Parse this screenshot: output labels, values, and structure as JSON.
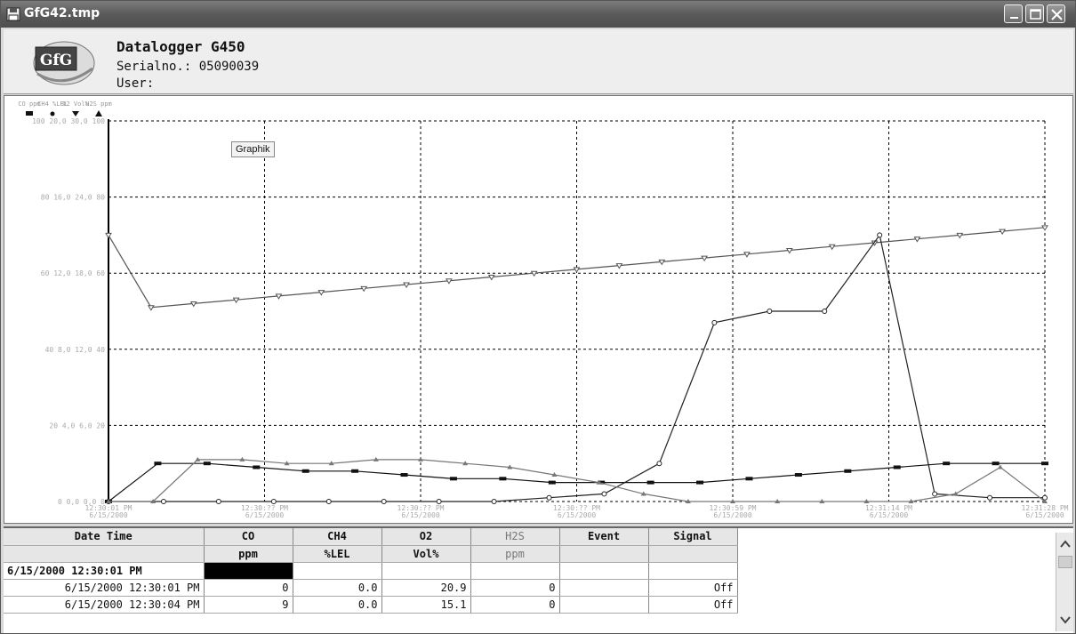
{
  "window": {
    "title": "GfG42.tmp"
  },
  "header": {
    "device": "Datalogger G450",
    "serial": "Serialno.: 05090039",
    "user": "User:",
    "logo_text": "GfG"
  },
  "chart": {
    "annotation": "Graphik",
    "legend": [
      {
        "label": "CO ppm",
        "marker": "square"
      },
      {
        "label": "CH4 %LEL",
        "marker": "circle"
      },
      {
        "label": "O2 Vol%",
        "marker": "triangle-down"
      },
      {
        "label": "H2S ppm",
        "marker": "triangle-up"
      }
    ],
    "y_ticks": [
      "100 20,0 30,0 100",
      "80 16,0 24,0 80",
      "60 12,0 18,0 60",
      "40 8,0 12,0 40",
      "20 4,0 6,0 20",
      "0 0,0 0,0 0"
    ],
    "x_ticks": [
      [
        "12:30:01 PM",
        "6/15/2000"
      ],
      [
        "12:30:?? PM",
        "6/15/2000"
      ],
      [
        "12:30:?? PM",
        "6/15/2000"
      ],
      [
        "12:30:?? PM",
        "6/15/2000"
      ],
      [
        "12:30:59 PM",
        "6/15/2000"
      ],
      [
        "12:31:14 PM",
        "6/15/2000"
      ],
      [
        "12:31:28 PM",
        "6/15/2000"
      ]
    ]
  },
  "chart_data": {
    "type": "line",
    "ylim": [
      0,
      100
    ],
    "grid": true,
    "legend_position": "top-left",
    "series": [
      {
        "name": "O2 Vol%",
        "values": [
          70,
          51,
          52,
          53,
          54,
          55,
          56,
          57,
          58,
          59,
          60,
          61,
          62,
          63,
          64,
          65,
          66,
          67,
          68,
          69,
          70,
          71,
          72
        ]
      },
      {
        "name": "CH4 %LEL",
        "values": [
          0,
          0,
          0,
          0,
          0,
          0,
          0,
          0,
          1,
          2,
          10,
          47,
          50,
          50,
          70,
          2,
          1,
          1
        ]
      },
      {
        "name": "CO ppm",
        "values": [
          0,
          10,
          10,
          9,
          8,
          8,
          7,
          6,
          6,
          5,
          5,
          5,
          5,
          6,
          7,
          8,
          9,
          10,
          10,
          10
        ]
      },
      {
        "name": "H2S ppm",
        "values": [
          0,
          0,
          11,
          11,
          10,
          10,
          11,
          11,
          10,
          9,
          7,
          5,
          2,
          0,
          0,
          0,
          0,
          0,
          0,
          2,
          9,
          0
        ]
      }
    ]
  },
  "table": {
    "columns": [
      {
        "name": "Date Time",
        "unit": ""
      },
      {
        "name": "CO",
        "unit": "ppm"
      },
      {
        "name": "CH4",
        "unit": "%LEL"
      },
      {
        "name": "O2",
        "unit": "Vol%"
      },
      {
        "name": "H2S",
        "unit": "ppm"
      },
      {
        "name": "Event",
        "unit": ""
      },
      {
        "name": "Signal",
        "unit": ""
      }
    ],
    "rows": [
      [
        "6/15/2000 12:30:01 PM",
        "",
        "",
        "",
        "",
        "",
        ""
      ],
      [
        "6/15/2000 12:30:01 PM",
        "0",
        "0.0",
        "20.9",
        "0",
        "",
        "Off"
      ],
      [
        "6/15/2000 12:30:04 PM",
        "9",
        "0.0",
        "15.1",
        "0",
        "",
        "Off"
      ]
    ]
  },
  "colors": {
    "titlebar": "#5a5a5a",
    "grid": "#000000",
    "series_o2": "#555555",
    "series_ch4": "#222222",
    "series_co": "#111111",
    "series_h2s": "#777777"
  }
}
